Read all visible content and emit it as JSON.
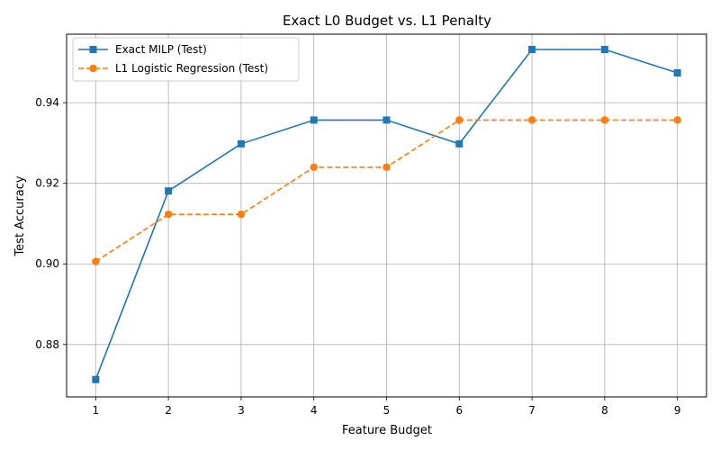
{
  "chart_data": {
    "type": "line",
    "title": "Exact L0 Budget vs. L1 Penalty",
    "xlabel": "Feature Budget",
    "ylabel": "Test Accuracy",
    "x": [
      1,
      2,
      3,
      4,
      5,
      6,
      7,
      8,
      9
    ],
    "xlim": [
      0.6,
      9.4
    ],
    "ylim": [
      0.867,
      0.957
    ],
    "xticks": [
      1,
      2,
      3,
      4,
      5,
      6,
      7,
      8,
      9
    ],
    "yticks": [
      0.88,
      0.9,
      0.92,
      0.94
    ],
    "ytick_labels": [
      "0.88",
      "0.90",
      "0.92",
      "0.94"
    ],
    "grid": true,
    "legend_position": "top-left",
    "series": [
      {
        "name": "Exact MILP (Test)",
        "values": [
          0.8713,
          0.9181,
          0.9298,
          0.9357,
          0.9357,
          0.9298,
          0.9532,
          0.9532,
          0.9474
        ],
        "color": "#1f77b4",
        "marker": "square",
        "linestyle": "solid"
      },
      {
        "name": "L1 Logistic Regression (Test)",
        "values": [
          0.9006,
          0.9123,
          0.9123,
          0.924,
          0.924,
          0.9357,
          0.9357,
          0.9357,
          0.9357
        ],
        "color": "#ff7f0e",
        "marker": "circle",
        "linestyle": "dashed"
      }
    ]
  }
}
